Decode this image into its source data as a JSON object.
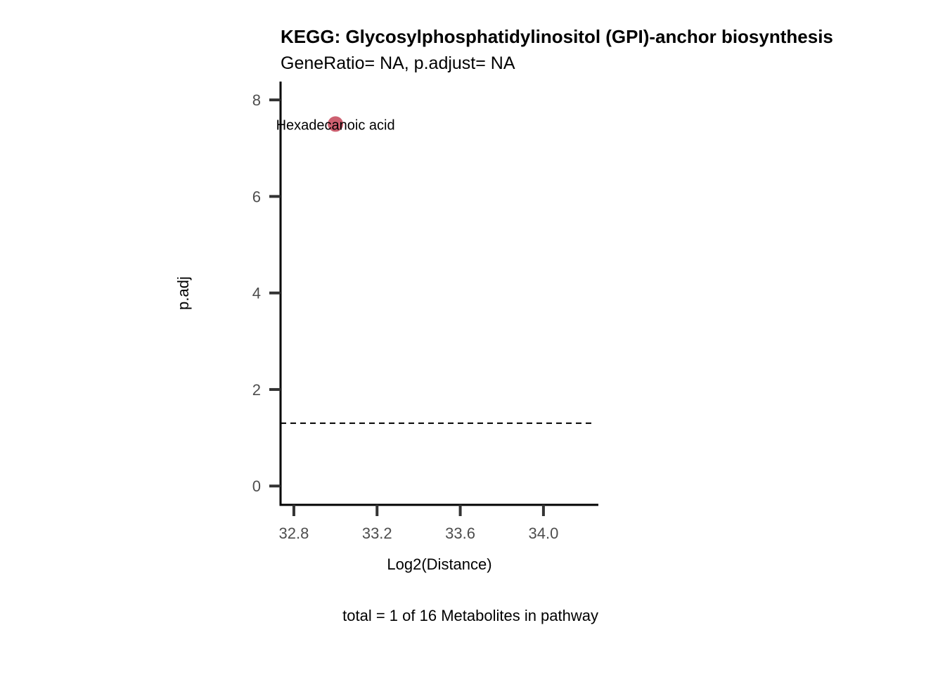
{
  "chart_data": {
    "type": "scatter",
    "title": "KEGG: Glycosylphosphatidylinositol (GPI)-anchor biosynthesis",
    "subtitle": "GeneRatio= NA, p.adjust= NA",
    "xlabel": "Log2(Distance)",
    "ylabel": "p.adj",
    "caption": "total = 1 of 16 Metabolites in pathway",
    "xlim": [
      32.736,
      34.264
    ],
    "ylim": [
      -0.39,
      8.38
    ],
    "x_ticks": [
      32.8,
      33.2,
      33.6,
      34.0
    ],
    "x_tick_labels": [
      "32.8",
      "33.2",
      "33.6",
      "34.0"
    ],
    "y_ticks": [
      0,
      2,
      4,
      6,
      8
    ],
    "y_tick_labels": [
      "0",
      "2",
      "4",
      "6",
      "8"
    ],
    "grid": false,
    "threshold_line": {
      "y": 1.301,
      "style": "dashed"
    },
    "points": [
      {
        "x": 33.0,
        "y": 7.5,
        "label": "Hexadecanoic acid",
        "color": "#CD6070"
      }
    ]
  }
}
